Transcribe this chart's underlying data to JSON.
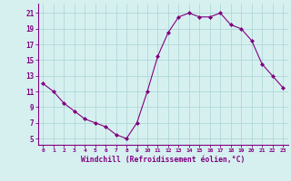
{
  "x": [
    0,
    1,
    2,
    3,
    4,
    5,
    6,
    7,
    8,
    9,
    10,
    11,
    12,
    13,
    14,
    15,
    16,
    17,
    18,
    19,
    20,
    21,
    22,
    23
  ],
  "y": [
    12,
    11,
    9.5,
    8.5,
    7.5,
    7,
    6.5,
    5.5,
    5,
    7,
    11,
    15.5,
    18.5,
    20.5,
    21,
    20.5,
    20.5,
    21,
    19.5,
    19,
    17.5,
    14.5,
    13,
    11.5
  ],
  "line_color": "#800080",
  "marker": "D",
  "marker_size": 2,
  "bg_color": "#d6f0f0",
  "grid_color": "#b0d8d8",
  "xlabel": "Windchill (Refroidissement éolien,°C)",
  "xlabel_color": "#800080",
  "tick_color": "#800080",
  "axis_color": "#800080",
  "yticks": [
    5,
    7,
    9,
    11,
    13,
    15,
    17,
    19,
    21
  ],
  "xticks": [
    0,
    1,
    2,
    3,
    4,
    5,
    6,
    7,
    8,
    9,
    10,
    11,
    12,
    13,
    14,
    15,
    16,
    17,
    18,
    19,
    20,
    21,
    22,
    23
  ],
  "ylim": [
    4.2,
    22.2
  ],
  "xlim": [
    -0.5,
    23.5
  ]
}
